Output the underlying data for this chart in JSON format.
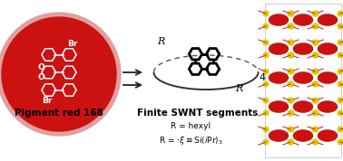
{
  "bg_color": "#ffffff",
  "left_label": "Pigment red 168",
  "middle_label": "Finite SWNT segments",
  "r_line1": "R = hexyl",
  "r_line2": "R = ·ξ≡Si(iPr)₃",
  "arrow_color": "#222222",
  "label_fontsize": 7.5,
  "sub_fontsize": 6.5,
  "circle_color": "#cc1111",
  "circle_rim": "#e0a0a0",
  "mol_color": "white",
  "crystal_red": "#cc1111",
  "crystal_yellow": "#ddcc00",
  "crystal_stick": "#cc3333"
}
